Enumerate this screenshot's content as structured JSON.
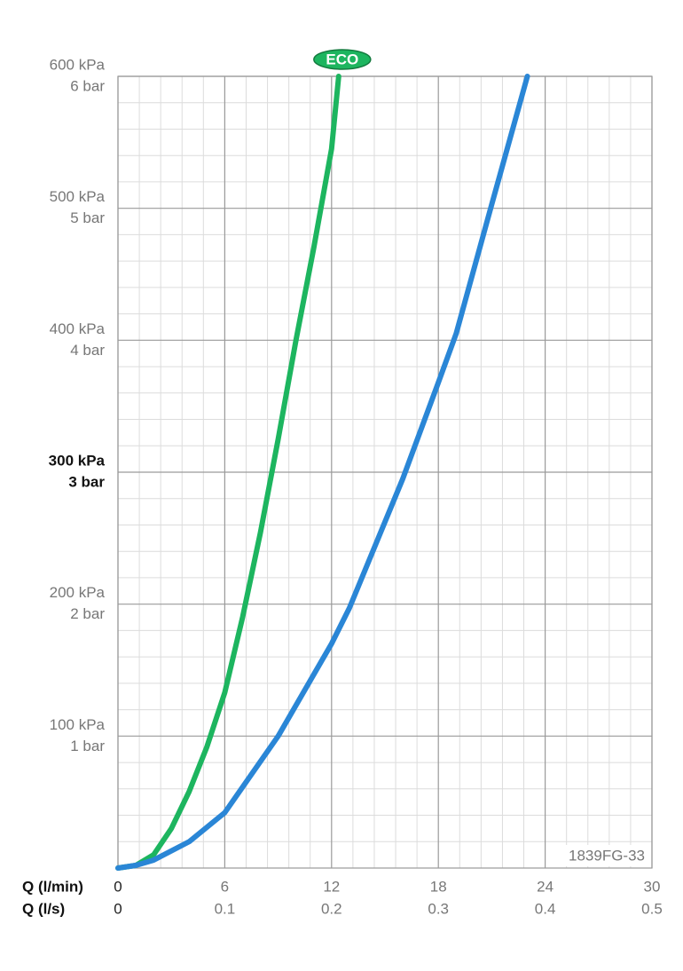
{
  "chart_data": {
    "type": "line",
    "xlabel": "Q (l/min)",
    "x2label": "Q (l/s)",
    "xlim": [
      0,
      30
    ],
    "xticks": [
      0,
      6,
      12,
      18,
      24,
      30
    ],
    "x2lim": [
      0,
      0.5
    ],
    "x2ticks": [
      0,
      0.1,
      0.2,
      0.3,
      0.4,
      0.5
    ],
    "ylim": [
      0,
      600
    ],
    "yticks": [
      {
        "value": 100,
        "label": "100 kPa"
      },
      {
        "value": 200,
        "label": "200 kPa"
      },
      {
        "value": 300,
        "label": "300 kPa"
      },
      {
        "value": 400,
        "label": "400 kPa"
      },
      {
        "value": 500,
        "label": "500 kPa"
      },
      {
        "value": 600,
        "label": "600 kPa"
      }
    ],
    "ytick_bar_labels": [
      "1 bar",
      "2 bar",
      "3 bar",
      "4 bar",
      "5 bar",
      "6 bar"
    ],
    "bold_ytick": 300,
    "grid": true,
    "minor_divisions": 5,
    "series": [
      {
        "color": "#1db55f",
        "label": "ECO",
        "x": [
          0,
          1,
          2,
          3,
          4,
          5,
          6,
          7,
          8,
          9,
          10,
          11,
          12,
          12.4
        ],
        "values": [
          0,
          2,
          10,
          30,
          58,
          92,
          133,
          190,
          254,
          325,
          400,
          470,
          545,
          600
        ]
      },
      {
        "color": "#2a86d6",
        "x": [
          0,
          1,
          2,
          4,
          6,
          9,
          12,
          13,
          16,
          18,
          19,
          21,
          23
        ],
        "values": [
          0,
          2,
          6,
          20,
          42,
          100,
          170,
          197,
          295,
          368,
          405,
          503,
          600
        ]
      }
    ],
    "code": "1839FG-33"
  }
}
